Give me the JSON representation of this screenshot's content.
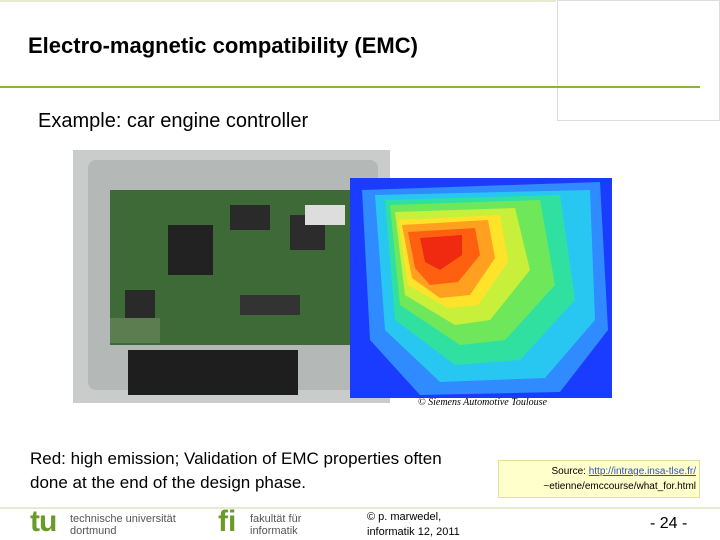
{
  "header": {
    "title": "Electro-magnetic compatibility (EMC)"
  },
  "subtitle": "Example: car engine controller",
  "image_credit": "© Siemens Automotive Toulouse",
  "caption": "Red: high emission; Validation of EMC properties often done at the end of the design phase.",
  "source": {
    "label": "Source:",
    "link_lines": [
      "http://intrage.insa-tlse.fr/",
      "~etienne/emccourse/what_for.html"
    ]
  },
  "footer": {
    "tu_logo": "tu",
    "university": [
      "technische universität",
      "dortmund"
    ],
    "fi_logo": "fi",
    "faculty": [
      "fakultät für",
      "informatik"
    ],
    "author": [
      "© p. marwedel,",
      "informatik 12, 2011"
    ],
    "page": "- 24 -"
  }
}
